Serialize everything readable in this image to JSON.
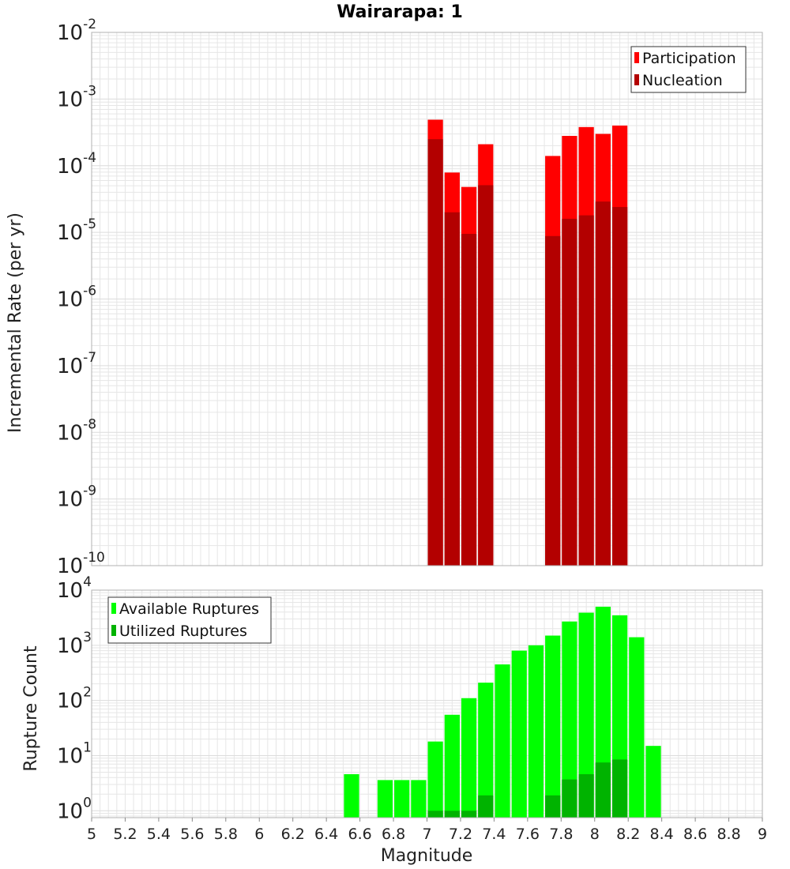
{
  "title": "Wairarapa: 1",
  "colors": {
    "participation": "#ff0000",
    "nucleation": "#b30000",
    "available": "#00ff00",
    "utilized": "#00b300",
    "grid": "#e6e6e6",
    "frame": "#b0b0b0"
  },
  "chart_data": [
    {
      "type": "bar",
      "title": "Wairarapa: 1",
      "xlabel": "",
      "ylabel": "Incremental Rate (per yr)",
      "yscale": "log",
      "xlim": [
        5,
        9
      ],
      "ylim": [
        1e-10,
        0.01
      ],
      "y_tick_exponents": [
        "-10",
        "-9",
        "-8",
        "-7",
        "-6",
        "-5",
        "-4",
        "-3",
        "-2"
      ],
      "grid": true,
      "legend_position": "top-right",
      "bar_width": 0.1,
      "series": [
        {
          "name": "Participation",
          "x": [
            7.05,
            7.15,
            7.25,
            7.35,
            7.75,
            7.85,
            7.95,
            8.05,
            8.15
          ],
          "values": [
            0.00049,
            7.9e-05,
            4.8e-05,
            0.00021,
            0.00014,
            0.00028,
            0.00038,
            0.0003,
            0.0004
          ]
        },
        {
          "name": "Nucleation",
          "x": [
            7.05,
            7.15,
            7.25,
            7.35,
            7.75,
            7.85,
            7.95,
            8.05,
            8.15
          ],
          "values": [
            0.00025,
            2e-05,
            9.5e-06,
            5.1e-05,
            8.8e-06,
            1.6e-05,
            1.8e-05,
            2.9e-05,
            2.4e-05
          ]
        }
      ]
    },
    {
      "type": "bar",
      "title": "",
      "xlabel": "Magnitude",
      "ylabel": "Rupture Count",
      "yscale": "log",
      "xlim": [
        5,
        9
      ],
      "ylim": [
        0.75,
        10000
      ],
      "y_tick_exponents": [
        "0",
        "1",
        "2",
        "3",
        "4"
      ],
      "x_ticks": [
        "5",
        "5.2",
        "5.4",
        "5.6",
        "5.8",
        "6",
        "6.2",
        "6.4",
        "6.6",
        "6.8",
        "7",
        "7.2",
        "7.4",
        "7.6",
        "7.8",
        "8",
        "8.2",
        "8.4",
        "8.6",
        "8.8",
        "9"
      ],
      "grid": true,
      "legend_position": "top-left",
      "bar_width": 0.1,
      "series": [
        {
          "name": "Available Ruptures",
          "x": [
            6.55,
            6.75,
            6.85,
            6.95,
            7.05,
            7.15,
            7.25,
            7.35,
            7.45,
            7.55,
            7.65,
            7.75,
            7.85,
            7.95,
            8.05,
            8.15,
            8.25,
            8.35
          ],
          "values": [
            4.6,
            3.6,
            3.6,
            3.6,
            18,
            55,
            110,
            210,
            450,
            800,
            1000,
            1500,
            2700,
            3900,
            5000,
            3500,
            1400,
            15
          ]
        },
        {
          "name": "Utilized Ruptures",
          "x": [
            7.05,
            7.15,
            7.25,
            7.35,
            7.75,
            7.85,
            7.95,
            8.05,
            8.15
          ],
          "values": [
            1,
            1,
            1,
            1.9,
            1.9,
            3.7,
            4.6,
            7.5,
            8.5
          ]
        }
      ]
    }
  ]
}
